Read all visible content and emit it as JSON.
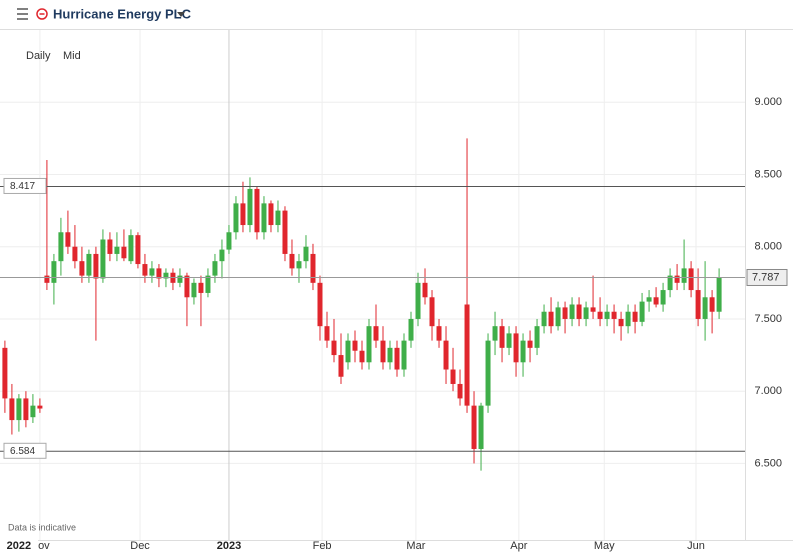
{
  "chart_data": {
    "type": "candlestick",
    "title": "Hurricane Energy PLC",
    "interval": "Daily",
    "price_type": "Mid",
    "note": "Data is indicative",
    "up_color": "#3fae49",
    "down_color": "#e0262d",
    "open": [
      7.3,
      6.95,
      6.8,
      6.95,
      6.82,
      6.9,
      7.8,
      7.75,
      7.9,
      8.1,
      8.0,
      7.9,
      7.8,
      7.95,
      7.78,
      8.05,
      7.95,
      8.0,
      7.9,
      8.08,
      7.88,
      7.8,
      7.85,
      7.78,
      7.82,
      7.75,
      7.8,
      7.65,
      7.75,
      7.68,
      7.8,
      7.9,
      7.98,
      8.1,
      8.3,
      8.15,
      8.4,
      8.1,
      8.3,
      8.15,
      8.25,
      7.95,
      7.85,
      7.9,
      7.95,
      7.75,
      7.45,
      7.35,
      7.25,
      7.2,
      7.35,
      7.28,
      7.2,
      7.45,
      7.35,
      7.2,
      7.3,
      7.15,
      7.35,
      7.5,
      7.75,
      7.65,
      7.45,
      7.35,
      7.15,
      7.05,
      7.6,
      6.9,
      6.6,
      6.9,
      7.35,
      7.45,
      7.3,
      7.4,
      7.2,
      7.35,
      7.3,
      7.45,
      7.55,
      7.45,
      7.58,
      7.5,
      7.6,
      7.5,
      7.58,
      7.55,
      7.5,
      7.55,
      7.5,
      7.45,
      7.55,
      7.48,
      7.62,
      7.65,
      7.6,
      7.7,
      7.8,
      7.75,
      7.85,
      7.7,
      7.5,
      7.65,
      7.55
    ],
    "high": [
      7.35,
      7.05,
      6.98,
      7.0,
      6.98,
      6.95,
      8.6,
      7.95,
      8.2,
      8.25,
      8.15,
      8.0,
      7.98,
      8.0,
      8.12,
      8.1,
      8.1,
      8.12,
      8.12,
      8.1,
      7.95,
      7.9,
      7.88,
      7.85,
      7.85,
      7.85,
      7.82,
      7.78,
      7.8,
      7.85,
      7.95,
      8.05,
      8.15,
      8.35,
      8.45,
      8.48,
      8.42,
      8.35,
      8.32,
      8.32,
      8.28,
      8.05,
      7.95,
      8.08,
      8.02,
      7.8,
      7.55,
      7.5,
      7.4,
      7.4,
      7.42,
      7.35,
      7.5,
      7.6,
      7.45,
      7.35,
      7.35,
      7.4,
      7.55,
      7.82,
      7.85,
      7.7,
      7.5,
      7.45,
      7.3,
      7.15,
      8.75,
      7.0,
      6.92,
      7.4,
      7.55,
      7.5,
      7.45,
      7.45,
      7.4,
      7.42,
      7.5,
      7.6,
      7.65,
      7.62,
      7.62,
      7.65,
      7.65,
      7.62,
      7.8,
      7.65,
      7.6,
      7.6,
      7.55,
      7.6,
      7.6,
      7.68,
      7.7,
      7.72,
      7.75,
      7.85,
      7.88,
      8.05,
      7.9,
      7.85,
      7.9,
      7.7,
      7.85
    ],
    "low": [
      6.85,
      6.7,
      6.72,
      6.75,
      6.78,
      6.85,
      7.7,
      7.6,
      7.8,
      7.95,
      7.85,
      7.75,
      7.75,
      7.35,
      7.75,
      7.9,
      7.9,
      7.9,
      7.88,
      7.85,
      7.75,
      7.75,
      7.72,
      7.72,
      7.7,
      7.72,
      7.45,
      7.6,
      7.45,
      7.65,
      7.75,
      7.78,
      7.95,
      8.05,
      8.1,
      8.1,
      8.05,
      8.05,
      8.1,
      8.1,
      7.9,
      7.8,
      7.75,
      7.85,
      7.7,
      7.35,
      7.3,
      7.2,
      7.05,
      7.15,
      7.2,
      7.15,
      7.15,
      7.3,
      7.15,
      7.15,
      7.1,
      7.1,
      7.3,
      7.45,
      7.6,
      7.35,
      7.3,
      7.05,
      7.0,
      6.9,
      6.85,
      6.5,
      6.45,
      6.85,
      7.25,
      7.2,
      7.25,
      7.1,
      7.1,
      7.2,
      7.25,
      7.4,
      7.4,
      7.42,
      7.4,
      7.45,
      7.45,
      7.45,
      7.5,
      7.45,
      7.45,
      7.4,
      7.35,
      7.4,
      7.4,
      7.45,
      7.55,
      7.58,
      7.55,
      7.65,
      7.7,
      7.7,
      7.65,
      7.45,
      7.35,
      7.4,
      7.5
    ],
    "close": [
      6.95,
      6.8,
      6.95,
      6.8,
      6.9,
      6.88,
      7.75,
      7.9,
      8.1,
      8.0,
      7.9,
      7.8,
      7.95,
      7.78,
      8.05,
      7.95,
      8.0,
      7.92,
      8.08,
      7.88,
      7.8,
      7.85,
      7.78,
      7.82,
      7.75,
      7.8,
      7.65,
      7.75,
      7.68,
      7.8,
      7.9,
      7.98,
      8.1,
      8.3,
      8.15,
      8.4,
      8.1,
      8.3,
      8.15,
      8.25,
      7.95,
      7.85,
      7.9,
      8.0,
      7.75,
      7.45,
      7.35,
      7.25,
      7.1,
      7.35,
      7.28,
      7.2,
      7.45,
      7.35,
      7.2,
      7.3,
      7.15,
      7.35,
      7.5,
      7.75,
      7.65,
      7.45,
      7.35,
      7.15,
      7.05,
      6.95,
      6.9,
      6.6,
      6.9,
      7.35,
      7.45,
      7.3,
      7.4,
      7.2,
      7.35,
      7.3,
      7.45,
      7.55,
      7.45,
      7.58,
      7.5,
      7.6,
      7.5,
      7.58,
      7.55,
      7.5,
      7.55,
      7.5,
      7.45,
      7.55,
      7.48,
      7.62,
      7.65,
      7.6,
      7.7,
      7.8,
      7.75,
      7.85,
      7.7,
      7.5,
      7.65,
      7.55,
      7.787
    ],
    "xlim": [
      -0.7,
      105.7
    ],
    "xticks": [
      {
        "value": 2,
        "label": "2022"
      },
      {
        "value": 5,
        "label": "Nov"
      },
      {
        "value": 19.3,
        "label": "Dec"
      },
      {
        "value": 32,
        "label": "2023"
      },
      {
        "value": 45.3,
        "label": "Feb"
      },
      {
        "value": 58.7,
        "label": "Mar"
      },
      {
        "value": 73.4,
        "label": "Apr"
      },
      {
        "value": 85.6,
        "label": "May"
      },
      {
        "value": 98.7,
        "label": "Jun"
      }
    ],
    "ylim": [
      5.97,
      9.5
    ],
    "yticks": [
      {
        "value": 6.5,
        "label": "6.500"
      },
      {
        "value": 7,
        "label": "7.000"
      },
      {
        "value": 7.5,
        "label": "7.500"
      },
      {
        "value": 8,
        "label": "8.000"
      },
      {
        "value": 8.5,
        "label": "8.500"
      },
      {
        "value": 9,
        "label": "9.000"
      }
    ],
    "hlines": [
      8.417,
      6.584
    ],
    "last_price": 7.787
  }
}
